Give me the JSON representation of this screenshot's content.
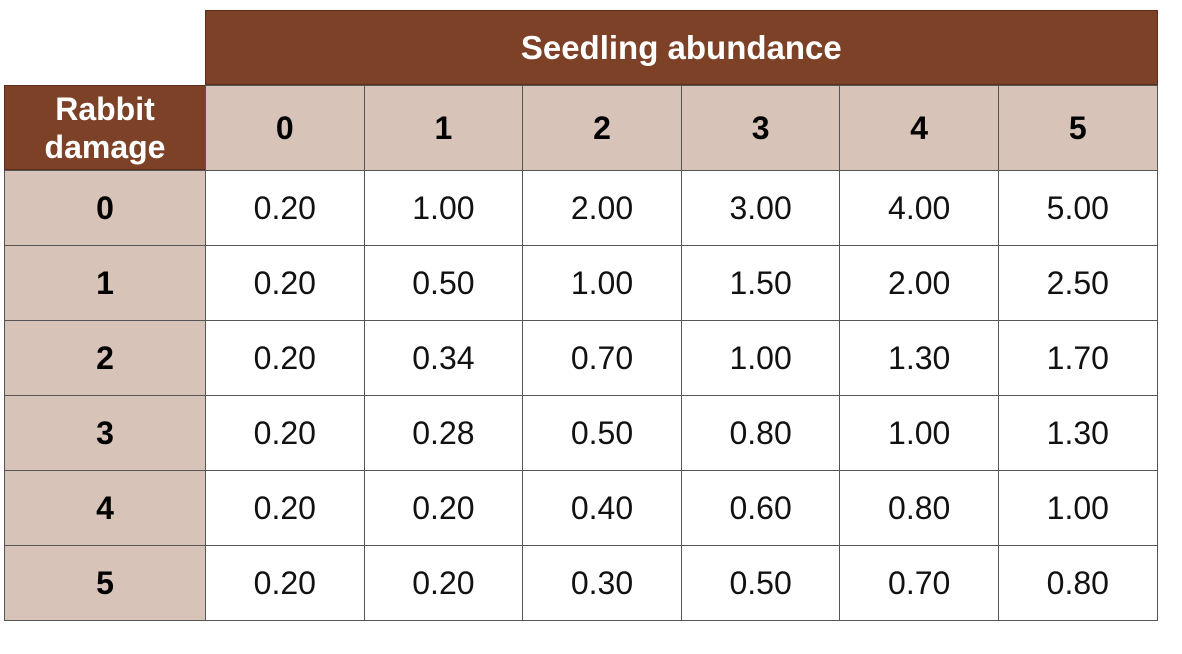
{
  "chart_data": {
    "type": "table",
    "column_header_title": "Seedling abundance",
    "row_header_title": [
      "Rabbit",
      "damage"
    ],
    "columns": [
      "0",
      "1",
      "2",
      "3",
      "4",
      "5"
    ],
    "rows": [
      "0",
      "1",
      "2",
      "3",
      "4",
      "5"
    ],
    "values": [
      [
        "0.20",
        "1.00",
        "2.00",
        "3.00",
        "4.00",
        "5.00"
      ],
      [
        "0.20",
        "0.50",
        "1.00",
        "1.50",
        "2.00",
        "2.50"
      ],
      [
        "0.20",
        "0.34",
        "0.70",
        "1.00",
        "1.30",
        "1.70"
      ],
      [
        "0.20",
        "0.28",
        "0.50",
        "0.80",
        "1.00",
        "1.30"
      ],
      [
        "0.20",
        "0.20",
        "0.40",
        "0.60",
        "0.80",
        "1.00"
      ],
      [
        "0.20",
        "0.20",
        "0.30",
        "0.50",
        "0.70",
        "0.80"
      ]
    ]
  },
  "colors": {
    "header_dark": "#7d4127",
    "header_light": "#d8c3b8",
    "cell_background": "#ffffff",
    "grid_line": "#555555"
  }
}
